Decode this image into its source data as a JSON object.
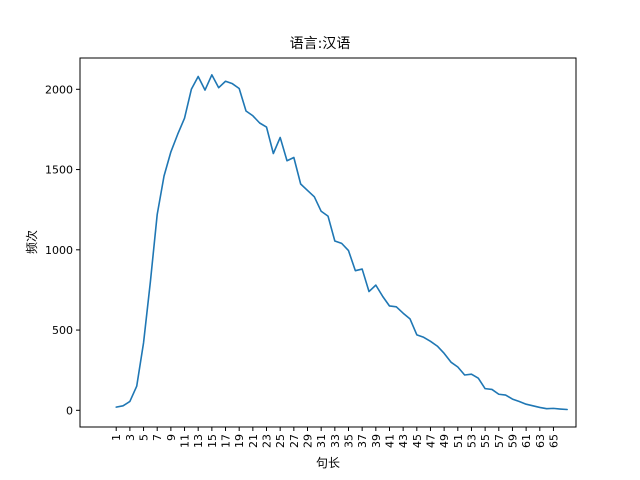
{
  "chart_data": {
    "type": "line",
    "title": "语言:汉语",
    "xlabel": "句长",
    "ylabel": "频次",
    "x_tick_labels": [
      "1",
      "3",
      "5",
      "7",
      "9",
      "11",
      "13",
      "15",
      "17",
      "19",
      "21",
      "23",
      "25",
      "27",
      "29",
      "31",
      "33",
      "35",
      "37",
      "39",
      "41",
      "43",
      "45",
      "47",
      "49",
      "51",
      "53",
      "55",
      "57",
      "59",
      "61",
      "63",
      "65"
    ],
    "y_ticks": [
      0,
      500,
      1000,
      1500,
      2000
    ],
    "xlim": [
      -4.3,
      68.3
    ],
    "ylim": [
      -104,
      2195
    ],
    "series": [
      {
        "name": "汉语",
        "color": "#1f77b4",
        "x": [
          1,
          2,
          3,
          4,
          5,
          6,
          7,
          8,
          9,
          10,
          11,
          12,
          13,
          14,
          15,
          16,
          17,
          18,
          19,
          20,
          21,
          22,
          23,
          24,
          25,
          26,
          27,
          28,
          29,
          30,
          31,
          32,
          33,
          34,
          35,
          36,
          37,
          38,
          39,
          40,
          41,
          42,
          43,
          44,
          45,
          46,
          47,
          48,
          49,
          50,
          51,
          52,
          53,
          54,
          55,
          56,
          57,
          58,
          59,
          60,
          61,
          62,
          63,
          64,
          65,
          66,
          67
        ],
        "y": [
          20,
          28,
          55,
          150,
          420,
          800,
          1220,
          1460,
          1610,
          1720,
          1820,
          2000,
          2080,
          1995,
          2090,
          2010,
          2050,
          2035,
          2005,
          1865,
          1835,
          1790,
          1765,
          1600,
          1700,
          1555,
          1575,
          1410,
          1370,
          1330,
          1240,
          1210,
          1055,
          1040,
          995,
          870,
          880,
          740,
          780,
          710,
          650,
          645,
          605,
          570,
          470,
          455,
          430,
          400,
          355,
          300,
          270,
          220,
          225,
          200,
          135,
          130,
          100,
          95,
          70,
          55,
          38,
          28,
          18,
          10,
          12,
          8,
          5
        ]
      }
    ]
  }
}
